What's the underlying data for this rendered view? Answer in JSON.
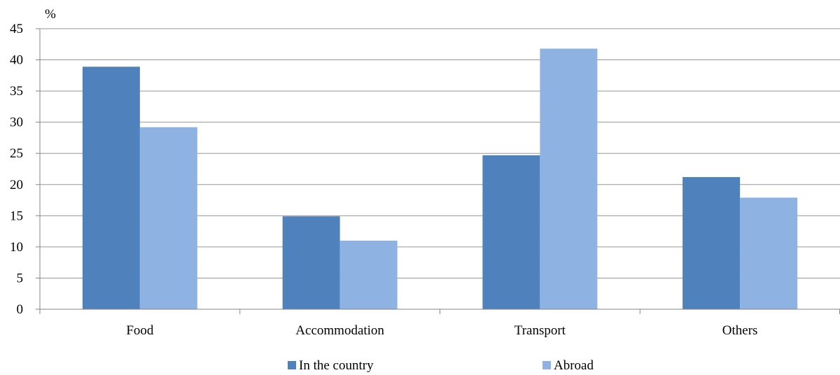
{
  "chart_data": {
    "type": "bar",
    "unit_label": "%",
    "categories": [
      "Food",
      "Accommodation",
      "Transport",
      "Others"
    ],
    "series": [
      {
        "name": "In the country",
        "color": "#4F81BD",
        "values": [
          38.9,
          14.9,
          24.7,
          21.2
        ]
      },
      {
        "name": "Abroad",
        "color": "#8EB3E2",
        "values": [
          29.2,
          11.0,
          41.8,
          17.9
        ]
      }
    ],
    "ylim": [
      0,
      45
    ],
    "yticks": [
      0,
      5,
      10,
      15,
      20,
      25,
      30,
      35,
      40,
      45
    ],
    "grid": true,
    "legend_position": "bottom"
  }
}
